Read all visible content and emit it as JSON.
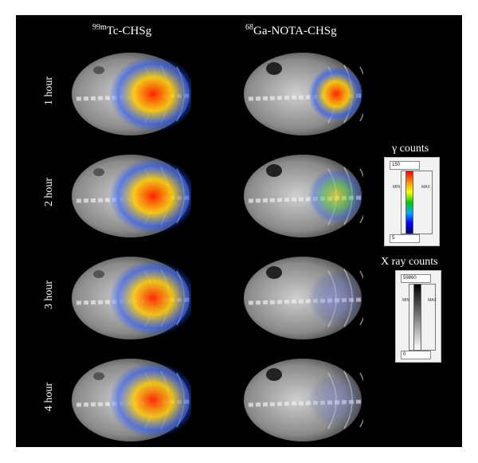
{
  "columns": [
    {
      "sup": "99m",
      "text": "Tc-CHSg"
    },
    {
      "sup": "68",
      "text": "Ga-NOTA-CHSg"
    }
  ],
  "rows": [
    "1 hour",
    "2 hour",
    "3 hour",
    "4 hour"
  ],
  "scans": {
    "tc": [
      1.0,
      1.0,
      0.95,
      0.95
    ],
    "ga": [
      1.0,
      0.55,
      0.25,
      0.15
    ]
  },
  "legend_gamma": {
    "title": "γ counts",
    "max": "150",
    "min": "5",
    "min_label": "MIN",
    "max_label": "MAX"
  },
  "legend_xray": {
    "title": "X ray counts",
    "max": "59860",
    "min": "0",
    "min_label": "MIN",
    "max_label": "MAX"
  },
  "colors": {
    "background": "#000000",
    "text": "#ffffff"
  }
}
